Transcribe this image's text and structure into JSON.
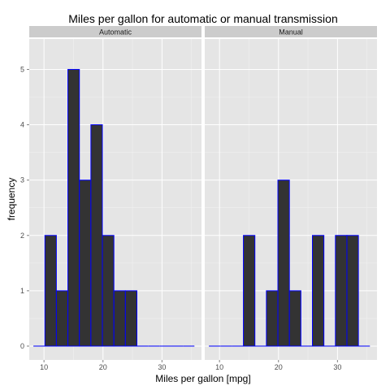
{
  "chart_data": {
    "type": "bar",
    "title": "Miles per gallon for automatic or manual transmission",
    "xlabel": "Miles per gallon [mpg]",
    "ylabel": "frequency",
    "xlim": [
      7.5,
      36.7
    ],
    "ylim": [
      -0.25,
      5.55
    ],
    "x_ticks": [
      10,
      20,
      30
    ],
    "y_ticks": [
      0,
      1,
      2,
      3,
      4,
      5
    ],
    "bin_width": 1.95,
    "grid": true,
    "colors": {
      "fill": "#333333",
      "outline": "#0000ff",
      "panel": "#e5e5e5",
      "strip": "#cccccc",
      "grid": "#ffffff"
    },
    "panels": [
      {
        "label": "Automatic",
        "bin_starts": [
          8.2,
          10.15,
          12.1,
          14.05,
          16.0,
          17.95,
          19.9,
          21.85,
          23.8,
          25.75,
          27.7,
          29.65,
          31.6,
          33.55
        ],
        "values": [
          0,
          2,
          1,
          5,
          3,
          4,
          2,
          1,
          1,
          0,
          0,
          0,
          0,
          0
        ]
      },
      {
        "label": "Manual",
        "bin_starts": [
          8.2,
          10.15,
          12.1,
          14.05,
          16.0,
          17.95,
          19.9,
          21.85,
          23.8,
          25.75,
          27.7,
          29.65,
          31.6,
          33.55
        ],
        "values": [
          0,
          0,
          0,
          2,
          0,
          1,
          3,
          1,
          0,
          2,
          0,
          2,
          2,
          0
        ]
      }
    ]
  }
}
